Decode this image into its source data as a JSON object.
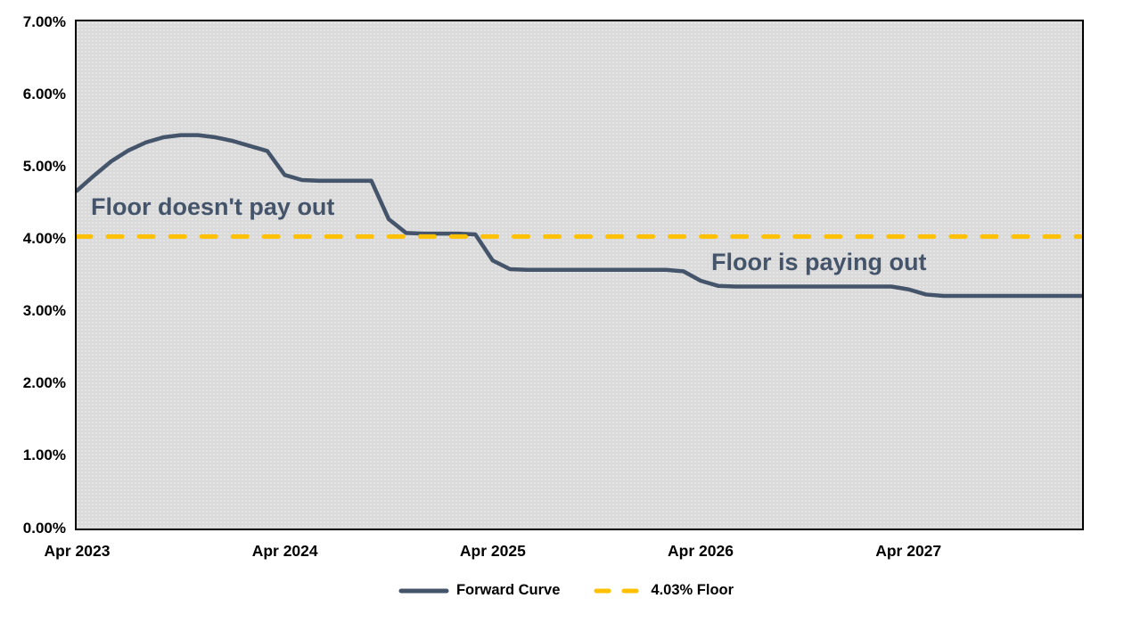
{
  "chart_data": {
    "type": "line",
    "title": "",
    "grid": false,
    "plot_background": "#DADADA",
    "y_axis": {
      "min": 0,
      "max": 7,
      "tick_labels": [
        "0.00%",
        "1.00%",
        "2.00%",
        "3.00%",
        "4.00%",
        "5.00%",
        "6.00%",
        "7.00%"
      ]
    },
    "x_axis": {
      "tick_labels": [
        "Apr 2023",
        "Apr 2024",
        "Apr 2025",
        "Apr 2026",
        "Apr 2027"
      ],
      "months_per_tick": 12,
      "start": "Apr 2023",
      "end": "Feb 2028"
    },
    "series": [
      {
        "name": "Forward Curve",
        "kind": "line",
        "color": "#44546A",
        "dashed": false,
        "x_unit": "month",
        "values": [
          4.66,
          4.87,
          5.07,
          5.22,
          5.33,
          5.4,
          5.43,
          5.43,
          5.4,
          5.35,
          5.28,
          5.21,
          4.88,
          4.81,
          4.8,
          4.8,
          4.8,
          4.8,
          4.27,
          4.08,
          4.07,
          4.07,
          4.07,
          4.06,
          3.7,
          3.58,
          3.57,
          3.57,
          3.57,
          3.57,
          3.57,
          3.57,
          3.57,
          3.57,
          3.57,
          3.55,
          3.42,
          3.35,
          3.34,
          3.34,
          3.34,
          3.34,
          3.34,
          3.34,
          3.34,
          3.34,
          3.34,
          3.34,
          3.3,
          3.23,
          3.21,
          3.21,
          3.21,
          3.21,
          3.21,
          3.21,
          3.21,
          3.21,
          3.21
        ]
      },
      {
        "name": "4.03% Floor",
        "kind": "hline",
        "color": "#FFC000",
        "dashed": true,
        "value": 4.03
      }
    ],
    "annotations": [
      {
        "text": "Floor doesn't pay out",
        "color": "#44546A",
        "position": "above-floor-left"
      },
      {
        "text": "Floor is paying out",
        "color": "#44546A",
        "position": "below-floor-right"
      }
    ],
    "legend": {
      "position": "bottom-center",
      "items": [
        "Forward Curve",
        "4.03% Floor"
      ]
    }
  }
}
